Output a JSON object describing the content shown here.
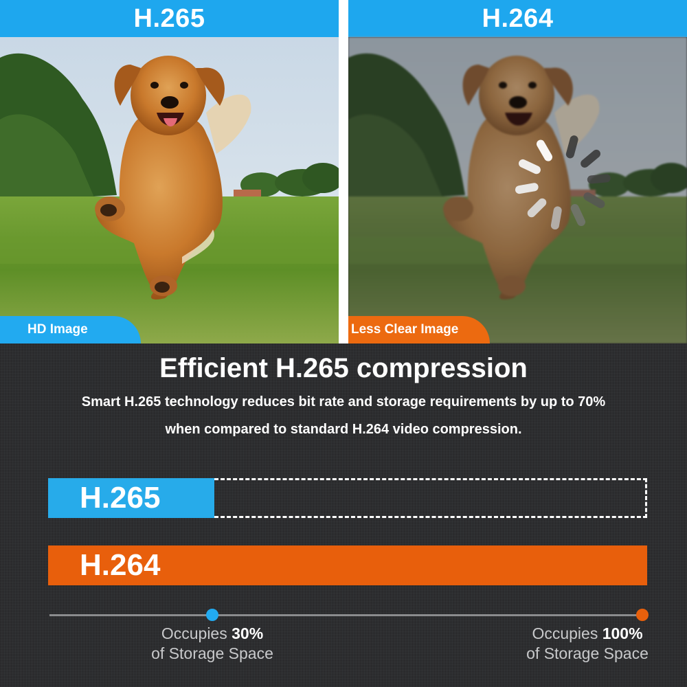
{
  "left_panel": {
    "header": "H.265",
    "badge": "HD Image"
  },
  "right_panel": {
    "header": "H.264",
    "badge": "Less Clear Image"
  },
  "info": {
    "headline": "Efficient H.265 compression",
    "subtitle_line1": "Smart H.265 technology reduces bit rate and storage requirements by up to 70%",
    "subtitle_line2": "when compared to standard H.264 video compression."
  },
  "bars": {
    "h265": {
      "label": "H.265",
      "storage_fraction": 0.3,
      "color": "#27abea"
    },
    "h264": {
      "label": "H.264",
      "storage_fraction": 1.0,
      "color": "#e85f0c"
    }
  },
  "captions": {
    "h265_prefix": "Occupies ",
    "h265_value": "30%",
    "h265_suffix": "of Storage Space",
    "h264_prefix": "Occupies ",
    "h264_value": "100%",
    "h264_suffix": "of Storage Space"
  },
  "colors": {
    "accent_blue": "#1ea7ee",
    "accent_orange": "#ec6a10",
    "background": "#2e2f31"
  },
  "icons": {
    "loading": "loading-spinner-icon"
  }
}
